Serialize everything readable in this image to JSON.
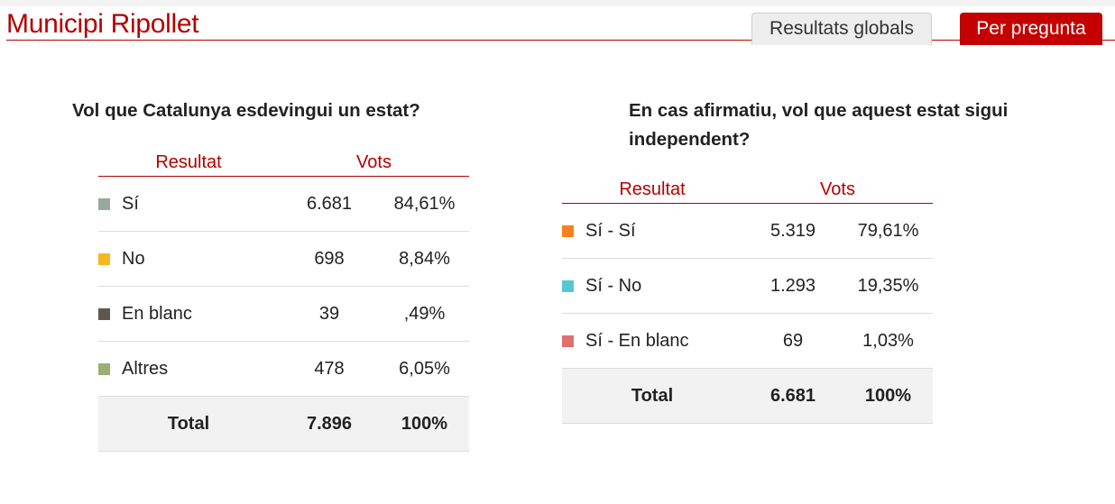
{
  "header": {
    "title": "Municipi Ripollet",
    "tabs": [
      {
        "label": "Resultats globals",
        "active": false
      },
      {
        "label": "Per pregunta",
        "active": true
      }
    ]
  },
  "colors": {
    "accent": "#b40000",
    "active_tab": "#c40000"
  },
  "questions": [
    {
      "title": "Vol que Catalunya esdevingui un estat?",
      "header_result": "Resultat",
      "header_votes": "Vots",
      "rows": [
        {
          "label": "Sí",
          "votes": "6.681",
          "pct": "84,61%",
          "color": "#96aa9b"
        },
        {
          "label": "No",
          "votes": "698",
          "pct": "8,84%",
          "color": "#f5b820"
        },
        {
          "label": "En blanc",
          "votes": "39",
          "pct": ",49%",
          "color": "#5e5850"
        },
        {
          "label": "Altres",
          "votes": "478",
          "pct": "6,05%",
          "color": "#98b070"
        }
      ],
      "total": {
        "label": "Total",
        "votes": "7.896",
        "pct": "100%"
      }
    },
    {
      "title": "En cas afirmatiu, vol que aquest estat sigui independent?",
      "header_result": "Resultat",
      "header_votes": "Vots",
      "rows": [
        {
          "label": "Sí - Sí",
          "votes": "5.319",
          "pct": "79,61%",
          "color": "#f58220"
        },
        {
          "label": "Sí - No",
          "votes": "1.293",
          "pct": "19,35%",
          "color": "#55c8d4"
        },
        {
          "label": "Sí - En blanc",
          "votes": "69",
          "pct": "1,03%",
          "color": "#e07070"
        }
      ],
      "total": {
        "label": "Total",
        "votes": "6.681",
        "pct": "100%"
      }
    }
  ]
}
